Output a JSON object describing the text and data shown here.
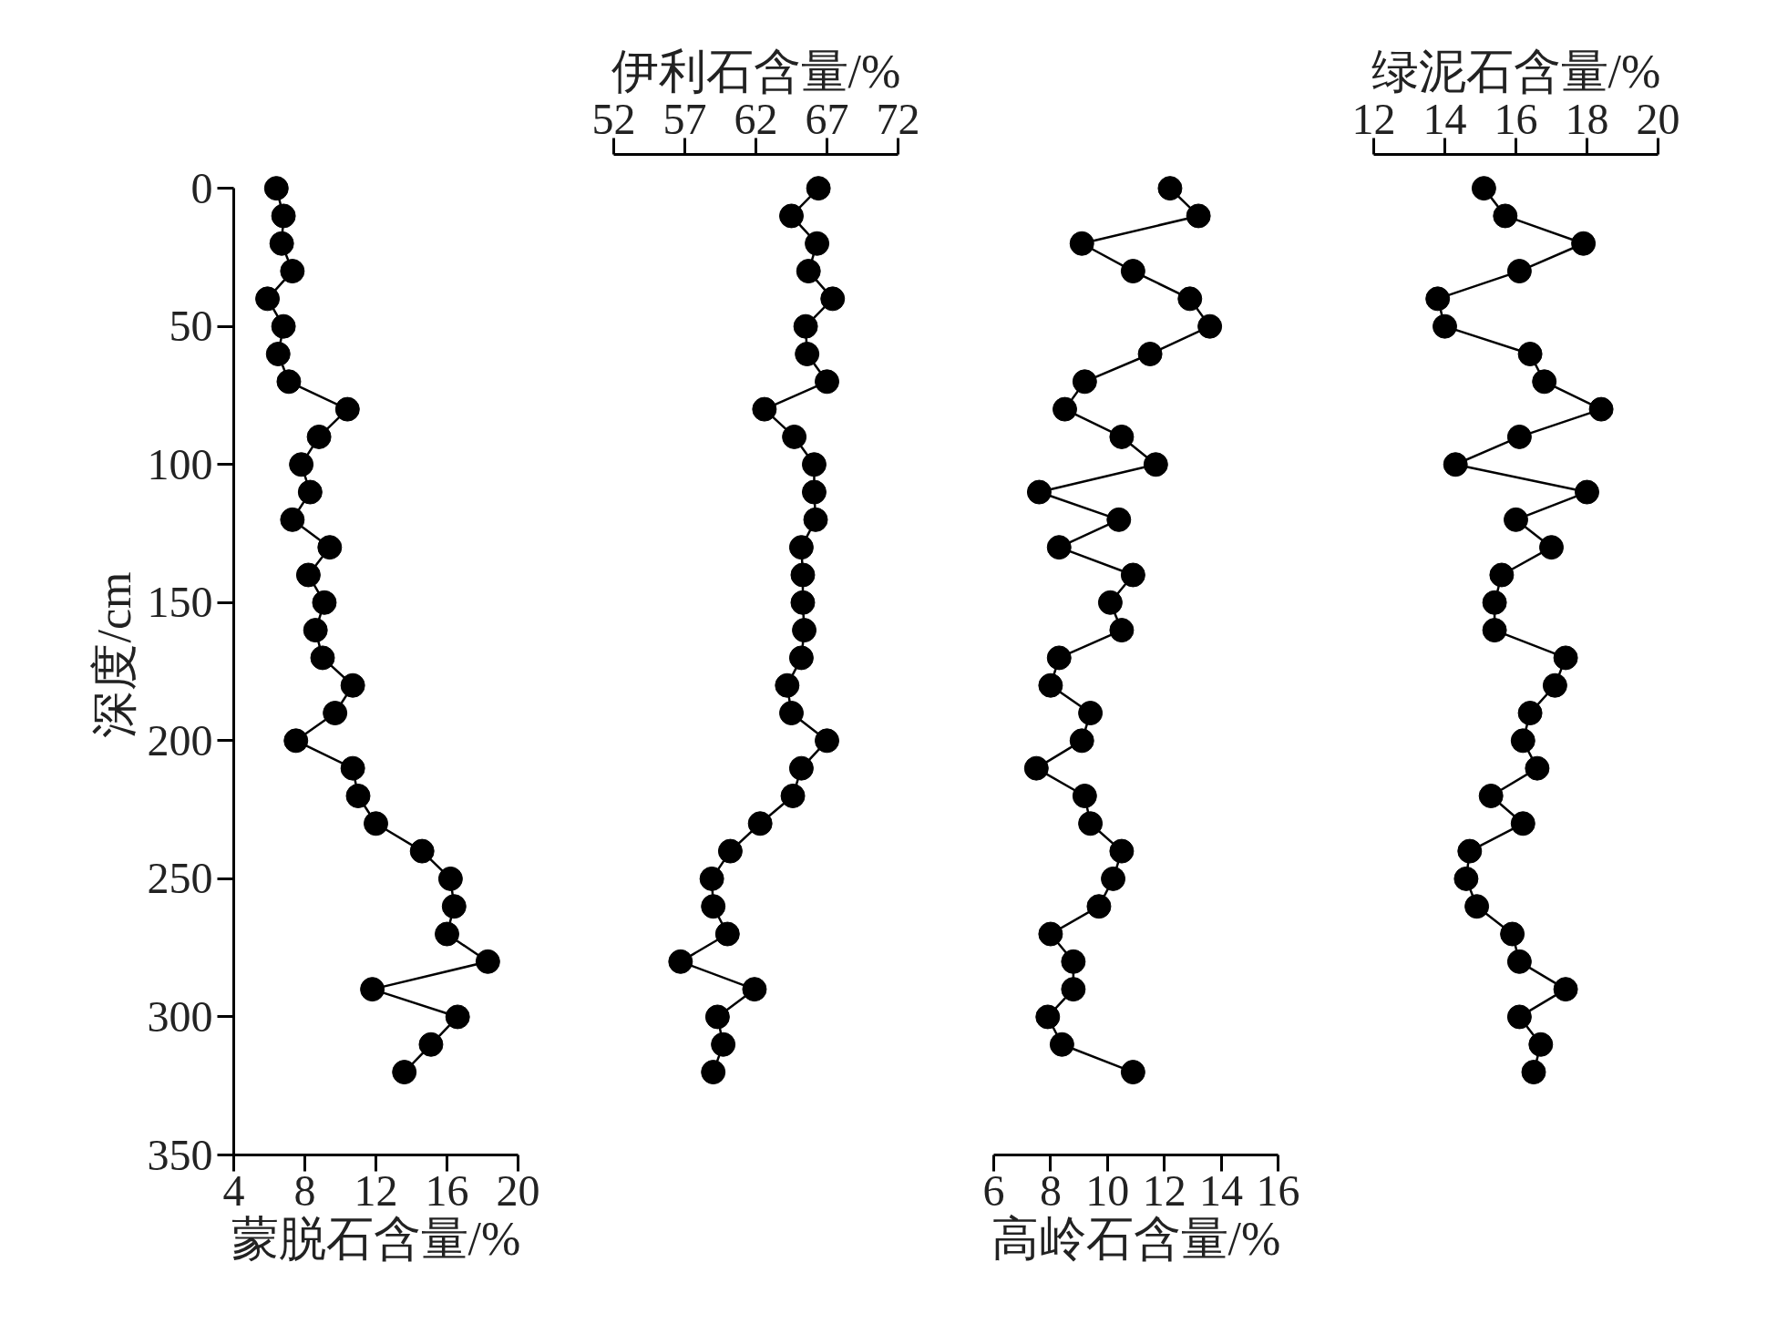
{
  "chart_data": [
    {
      "type": "line",
      "color": "#000000",
      "marker": "circle",
      "line_style": "solid",
      "xlabel": "蒙脱石含量/%",
      "ylabel": "深度/cm",
      "xlim": [
        4,
        20
      ],
      "xticks": [
        4,
        8,
        12,
        16,
        20
      ],
      "ylim": [
        350,
        0
      ],
      "yticks": [
        0,
        50,
        100,
        150,
        200,
        250,
        300,
        350
      ],
      "x": [
        6.4,
        6.8,
        6.7,
        7.3,
        5.9,
        6.8,
        6.5,
        7.1,
        10.4,
        8.8,
        7.8,
        8.3,
        7.3,
        9.4,
        8.2,
        9.1,
        8.6,
        9.0,
        10.7,
        9.7,
        7.5,
        10.7,
        11.0,
        12.0,
        14.6,
        16.2,
        16.4,
        16.0,
        18.3,
        11.8,
        16.6,
        15.1,
        13.6
      ],
      "values": [
        0,
        10,
        20,
        30,
        40,
        50,
        60,
        70,
        80,
        90,
        100,
        110,
        120,
        130,
        140,
        150,
        160,
        170,
        180,
        190,
        200,
        210,
        220,
        230,
        240,
        250,
        260,
        270,
        280,
        290,
        300,
        310,
        320
      ]
    },
    {
      "type": "line",
      "marker": "circle",
      "line_style": "solid",
      "x2label": "伊利石含量/%",
      "xlim": [
        52,
        72
      ],
      "xticks": [
        52,
        57,
        62,
        67,
        72
      ],
      "ylim": [
        350,
        0
      ],
      "tick_labels": "x",
      "series": [
        {
          "color": "#000000",
          "x": [
            66.4,
            64.5,
            66.3,
            65.7,
            67.4,
            65.5,
            65.6,
            67.0,
            62.6,
            64.7,
            66.1,
            66.1,
            66.2,
            65.2,
            65.3,
            65.3,
            65.4,
            65.2,
            64.2,
            64.5,
            67.0,
            65.2,
            64.6,
            62.3,
            60.2,
            58.9,
            59.0,
            60.0,
            56.7,
            61.9,
            59.3,
            59.7,
            59.0
          ],
          "values": [
            0,
            10,
            20,
            30,
            40,
            50,
            60,
            70,
            80,
            90,
            100,
            110,
            120,
            130,
            140,
            150,
            160,
            170,
            180,
            190,
            200,
            210,
            220,
            230,
            240,
            250,
            260,
            270,
            280,
            290,
            300,
            310,
            320
          ]
        }
      ]
    },
    {
      "type": "line",
      "color": "#000000",
      "marker": "circle",
      "line_style": "solid",
      "xlabel": "高岭石含量/%",
      "xlim": [
        6,
        16
      ],
      "xticks": [
        6,
        8,
        10,
        12,
        14,
        16
      ],
      "ylim": [
        350,
        0
      ],
      "tick_labels": "x",
      "x": [
        12.2,
        13.2,
        9.1,
        10.9,
        12.9,
        13.6,
        11.5,
        9.2,
        8.5,
        10.5,
        11.7,
        7.6,
        10.4,
        8.3,
        10.9,
        10.1,
        10.5,
        8.3,
        8.0,
        9.4,
        9.1,
        7.5,
        9.2,
        9.4,
        10.5,
        10.2,
        9.7,
        8.0,
        8.8,
        8.8,
        7.9,
        8.4,
        10.9
      ],
      "values": [
        0,
        10,
        20,
        30,
        40,
        50,
        60,
        70,
        80,
        90,
        100,
        110,
        120,
        130,
        140,
        150,
        160,
        170,
        180,
        190,
        200,
        210,
        220,
        230,
        240,
        250,
        260,
        270,
        280,
        290,
        300,
        310,
        320
      ]
    },
    {
      "type": "line",
      "marker": "circle",
      "line_style": "solid",
      "x2label": "绿泥石含量/%",
      "xlim": [
        12,
        20
      ],
      "xticks": [
        12,
        14,
        16,
        18,
        20
      ],
      "ylim": [
        350,
        0
      ],
      "tick_labels": "x",
      "series": [
        {
          "color": "#000000",
          "x": [
            15.1,
            15.7,
            17.9,
            16.1,
            13.8,
            14.0,
            16.4,
            16.8,
            18.4,
            16.1,
            14.3,
            18.0,
            16.0,
            17.0,
            15.6,
            15.4,
            15.4,
            17.4,
            17.1,
            16.4,
            16.2,
            16.6,
            15.3,
            16.2,
            14.7,
            14.6,
            14.9,
            15.9,
            16.1,
            17.4,
            16.1,
            16.7,
            16.5
          ],
          "values": [
            0,
            10,
            20,
            30,
            40,
            50,
            60,
            70,
            80,
            90,
            100,
            110,
            120,
            130,
            140,
            150,
            160,
            170,
            180,
            190,
            200,
            210,
            220,
            230,
            240,
            250,
            260,
            270,
            280,
            290,
            300,
            310,
            320
          ]
        }
      ]
    }
  ]
}
